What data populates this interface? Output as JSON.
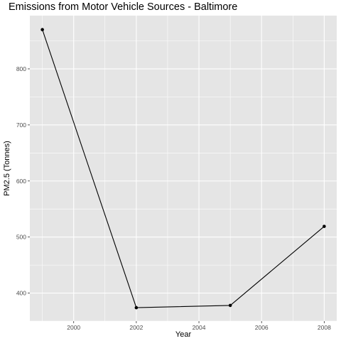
{
  "chart_data": {
    "type": "line",
    "title": "Emissions from Motor Vehicle Sources - Baltimore",
    "xlabel": "Year",
    "ylabel": "PM2.5 (Tonnes)",
    "x": [
      1999,
      2002,
      2005,
      2008
    ],
    "series": [
      {
        "values": [
          870,
          374,
          378,
          519
        ]
      }
    ],
    "xlim": [
      1998.6,
      2008.4
    ],
    "ylim": [
      350,
      895
    ],
    "xticks": [
      2000,
      2002,
      2004,
      2006,
      2008
    ],
    "yticks": [
      400,
      500,
      600,
      700,
      800
    ],
    "grid": true,
    "legend": "none",
    "colors": {
      "panel": "#e5e5e5",
      "grid_major": "#ffffff",
      "line": "#000000",
      "point": "#000000"
    }
  }
}
